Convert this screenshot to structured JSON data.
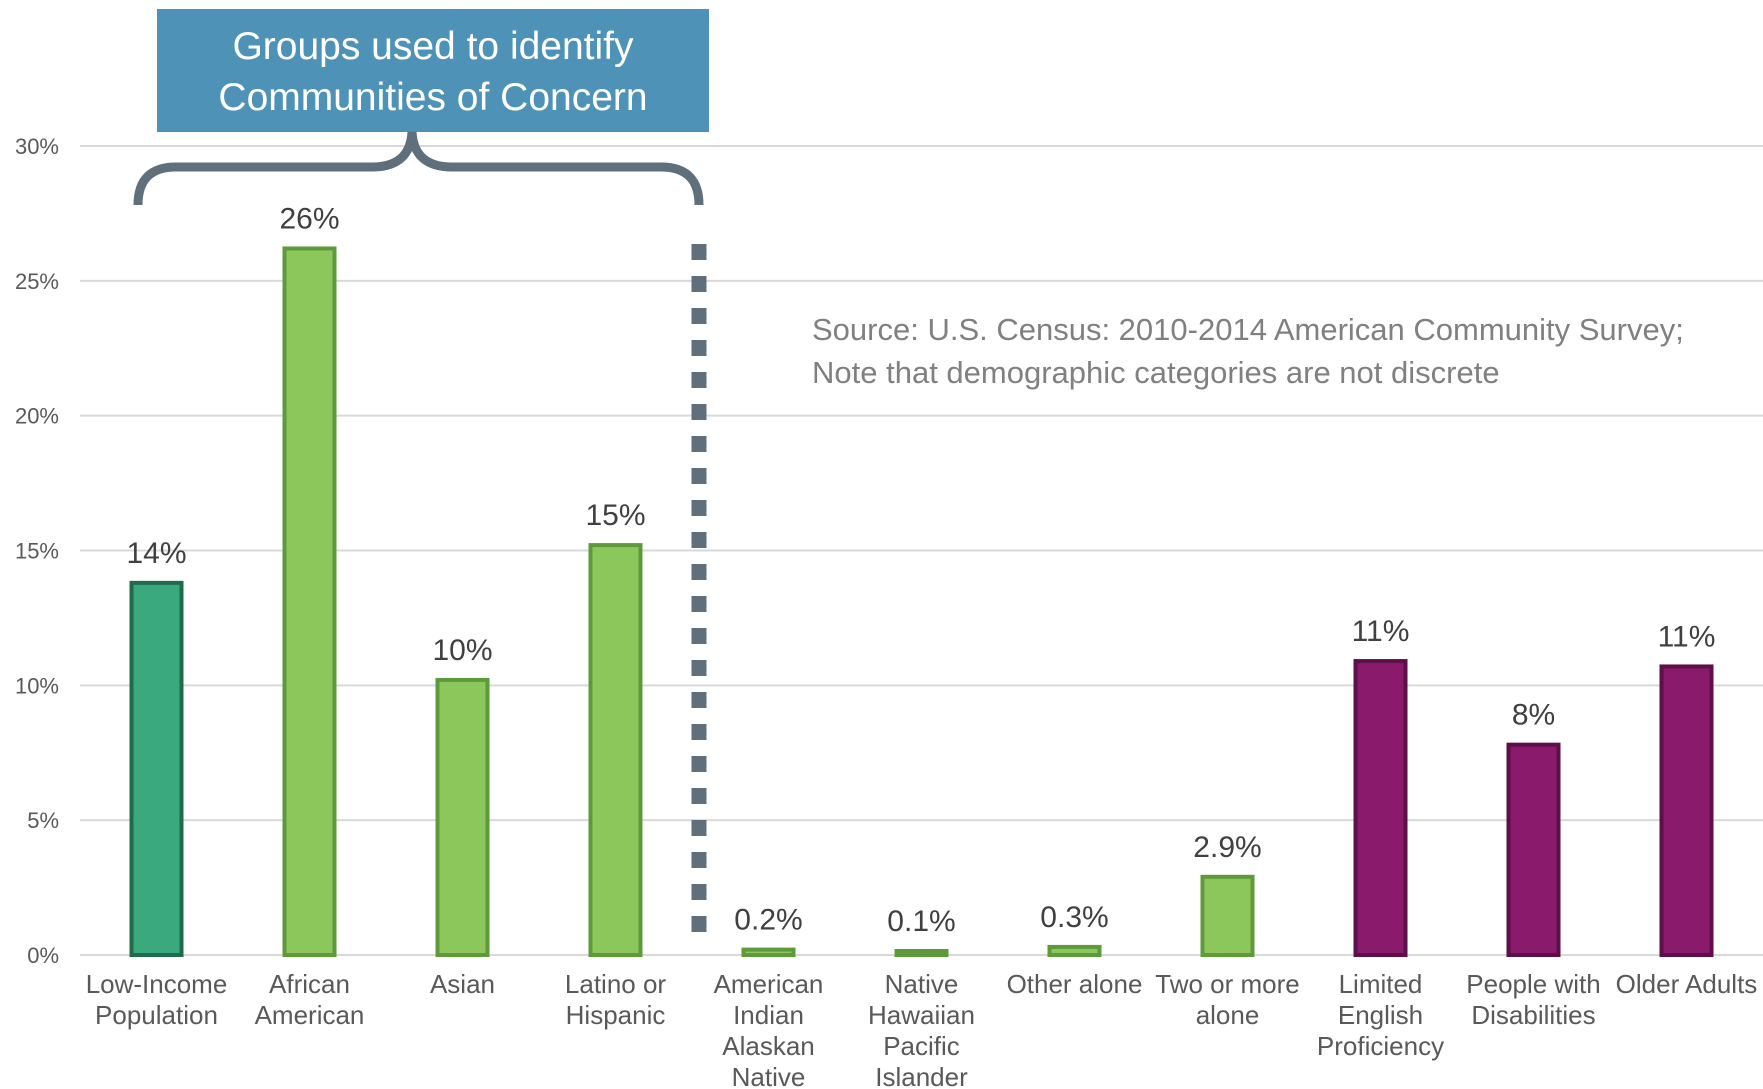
{
  "chart_data": {
    "type": "bar",
    "categories": [
      [
        "Low-Income",
        "Population"
      ],
      [
        "African",
        "American"
      ],
      [
        "Asian"
      ],
      [
        "Latino or",
        "Hispanic"
      ],
      [
        "American",
        "Indian",
        "Alaskan",
        "Native"
      ],
      [
        "Native",
        "Hawaiian",
        "Pacific",
        "Islander"
      ],
      [
        "Other alone"
      ],
      [
        "Two or more",
        "alone"
      ],
      [
        "Limited",
        "English",
        "Proficiency"
      ],
      [
        "People with",
        "Disabilities"
      ],
      [
        "Older Adults"
      ]
    ],
    "values": [
      13.8,
      26.2,
      10.2,
      15.2,
      0.2,
      0.1,
      0.3,
      2.9,
      10.9,
      7.8,
      10.7
    ],
    "data_labels": [
      "14%",
      "26%",
      "10%",
      "15%",
      "0.2%",
      "0.1%",
      "0.3%",
      "2.9%",
      "11%",
      "8%",
      "11%"
    ],
    "groups": [
      "low-income",
      "race",
      "race",
      "race",
      "race",
      "race",
      "race",
      "race",
      "other",
      "other",
      "other"
    ],
    "colors": {
      "low-income": {
        "fill": "#3aaa7e",
        "stroke": "#1f6b4c"
      },
      "race": {
        "fill": "#8bc75a",
        "stroke": "#5e9a3c"
      },
      "other": {
        "fill": "#8a1a6b",
        "stroke": "#5e0e48"
      },
      "gridline": "#d9d9d9",
      "bracket": "#5f6f7c",
      "divider": "#5f6f7c",
      "callout": "#4e93b7"
    },
    "ylim": [
      0,
      30
    ],
    "yticks": [
      0,
      5,
      10,
      15,
      20,
      25,
      30
    ],
    "ytick_labels": [
      "0%",
      "5%",
      "10%",
      "15%",
      "20%",
      "25%",
      "30%"
    ],
    "grid": true,
    "title": "",
    "xlabel": "",
    "ylabel": "",
    "legend": "none"
  },
  "callout": {
    "lines": [
      "Groups used to identify",
      "Communities of Concern"
    ]
  },
  "note": {
    "lines": [
      "Source: U.S. Census:  2010-2014 American Community Survey;",
      "Note that demographic categories are not discrete"
    ]
  }
}
